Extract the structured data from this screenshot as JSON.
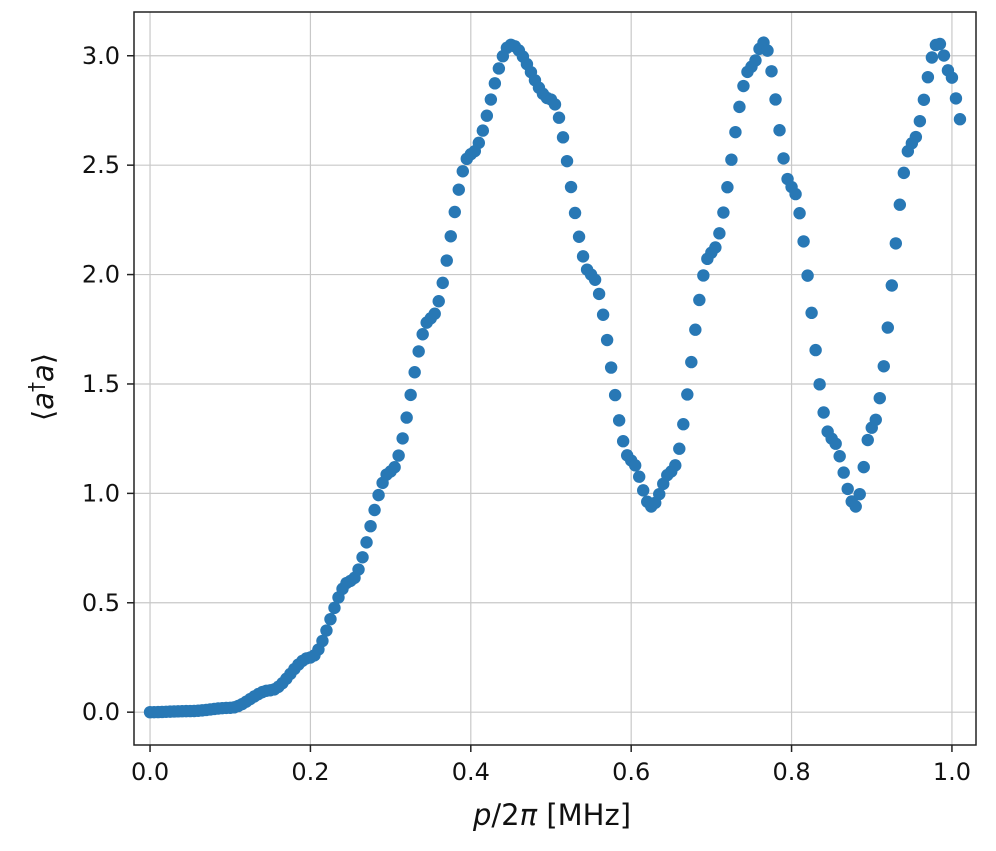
{
  "chart_data": {
    "type": "scatter",
    "title": "",
    "xlabel": {
      "var": "p",
      "slash": "/2",
      "pi": "π",
      "unit": " [MHz]"
    },
    "ylabel": {
      "open": "⟨",
      "a1": "a",
      "dagger": "†",
      "a2": "a",
      "close": "⟩"
    },
    "xlim": [
      -0.02,
      1.03
    ],
    "ylim": [
      -0.15,
      3.2
    ],
    "xticks": [
      0.0,
      0.2,
      0.4,
      0.6,
      0.8,
      1.0
    ],
    "xtick_labels": [
      "0.0",
      "0.2",
      "0.4",
      "0.6",
      "0.8",
      "1.0"
    ],
    "yticks": [
      0.0,
      0.5,
      1.0,
      1.5,
      2.0,
      2.5,
      3.0
    ],
    "ytick_labels": [
      "0.0",
      "0.5",
      "1.0",
      "1.5",
      "2.0",
      "2.5",
      "3.0"
    ],
    "grid": true,
    "marker_color": "#2878b5",
    "series": [
      {
        "x_range": [
          0.0,
          1.01
        ],
        "x_step": 0.005,
        "x_points": [
          0.0,
          0.05,
          0.1,
          0.15,
          0.2,
          0.25,
          0.3,
          0.35,
          0.4,
          0.45,
          0.5,
          0.55,
          0.6,
          0.625,
          0.65,
          0.7,
          0.75,
          0.765,
          0.8,
          0.85,
          0.88,
          0.9,
          0.95,
          0.983,
          1.0,
          1.01
        ],
        "y_points": [
          0.0,
          0.005,
          0.02,
          0.1,
          0.25,
          0.6,
          1.1,
          1.8,
          2.55,
          3.05,
          2.8,
          2.0,
          1.15,
          0.94,
          1.1,
          2.1,
          2.95,
          3.06,
          2.4,
          1.25,
          0.94,
          1.3,
          2.6,
          3.06,
          2.9,
          2.71
        ]
      }
    ]
  }
}
